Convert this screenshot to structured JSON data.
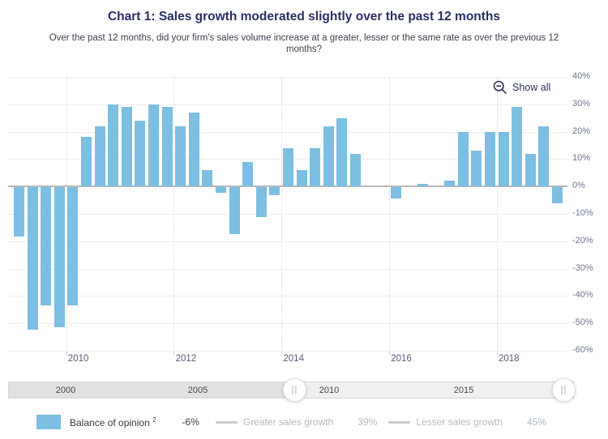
{
  "title": "Chart 1: Sales growth moderated slightly over the past 12 months",
  "subtitle": "Over the past 12 months, did your firm's sales volume increase at a greater, lesser or the same rate as over the previous 12 months?",
  "show_all_label": "Show all",
  "colors": {
    "bar": "#7dbfe2",
    "title": "#2b2e63",
    "legend_disabled": "#b3bac2",
    "zero_line": "#b9b9b9"
  },
  "navigator": {
    "labels": [
      "2000",
      "2005",
      "2010",
      "2015"
    ],
    "selected_range": "2009 – 2019"
  },
  "legend": {
    "balance_label": "Balance of opinion",
    "balance_footnote": "2",
    "balance_value": "-6%",
    "greater_label": "Greater sales growth",
    "greater_value": "39%",
    "lesser_label": "Lesser sales growth",
    "lesser_value": "45%"
  },
  "chart_data": {
    "type": "bar",
    "title": "Chart 1: Sales growth moderated slightly over the past 12 months",
    "subtitle": "Over the past 12 months, did your firm's sales volume increase at a greater, lesser or the same rate as over the previous 12 months?",
    "series_name": "Balance of opinion",
    "categories": [
      "2009 Q1",
      "2009 Q2",
      "2009 Q3",
      "2009 Q4",
      "2010 Q1",
      "2010 Q2",
      "2010 Q3",
      "2010 Q4",
      "2011 Q1",
      "2011 Q2",
      "2011 Q3",
      "2011 Q4",
      "2012 Q1",
      "2012 Q2",
      "2012 Q3",
      "2012 Q4",
      "2013 Q1",
      "2013 Q2",
      "2013 Q3",
      "2013 Q4",
      "2014 Q1",
      "2014 Q2",
      "2014 Q3",
      "2014 Q4",
      "2015 Q1",
      "2015 Q2",
      "2015 Q3",
      "2015 Q4",
      "2016 Q1",
      "2016 Q2",
      "2016 Q3",
      "2016 Q4",
      "2017 Q1",
      "2017 Q2",
      "2017 Q3",
      "2017 Q4",
      "2018 Q1",
      "2018 Q2",
      "2018 Q3",
      "2018 Q4",
      "2019 Q1"
    ],
    "values": [
      -18,
      -52,
      -43,
      -51,
      -43,
      18,
      22,
      30,
      29,
      24,
      30,
      29,
      22,
      27,
      6,
      -2,
      -17,
      9,
      -11,
      -3,
      14,
      6,
      14,
      22,
      25,
      12,
      0,
      0,
      -4,
      0,
      1,
      0,
      2,
      20,
      13,
      20,
      20,
      29,
      12,
      22,
      -6
    ],
    "unit": "%",
    "ylim": [
      -60,
      40
    ],
    "ytick_step": 10,
    "ytick_labels": [
      "40%",
      "30%",
      "20%",
      "10%",
      "0%",
      "-10%",
      "-20%",
      "-30%",
      "-40%",
      "-50%",
      "-60%"
    ],
    "xtick_years": [
      "2010",
      "2012",
      "2014",
      "2016",
      "2018"
    ],
    "grid": true,
    "legend_position": "bottom",
    "yaxis_side": "right"
  }
}
